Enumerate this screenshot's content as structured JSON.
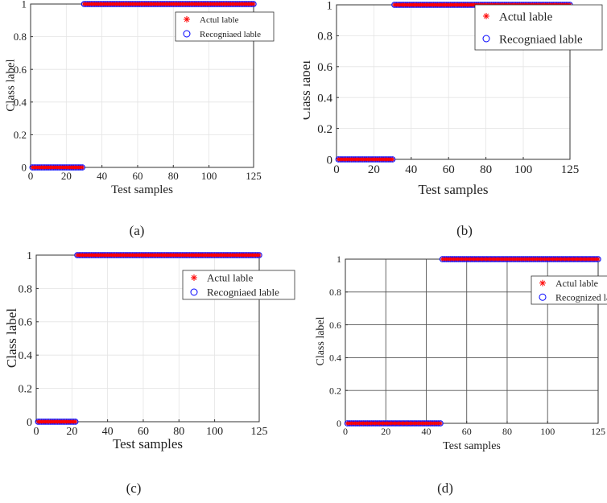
{
  "chart_data": [
    {
      "panel": "(a)",
      "type": "scatter",
      "xlabel": "Test samples",
      "ylabel": "Class label",
      "xlim": [
        0,
        125
      ],
      "ylim": [
        0,
        1
      ],
      "xticks": [
        0,
        20,
        40,
        60,
        80,
        100,
        125
      ],
      "yticks": [
        0,
        0.2,
        0.4,
        0.6,
        0.8,
        1
      ],
      "grid": "light",
      "legend": [
        "Actul lable",
        "Recogniaed lable"
      ],
      "legend_position": "top-right",
      "label_switch_sample": 30,
      "x_range": [
        1,
        125
      ],
      "series": [
        {
          "name": "Actul lable",
          "marker": "star",
          "color": "#ff0000",
          "value_before_switch": 0,
          "value_after_switch": 1
        },
        {
          "name": "Recogniaed lable",
          "marker": "circle",
          "color": "#0000ff",
          "value_before_switch": 0,
          "value_after_switch": 1
        }
      ]
    },
    {
      "panel": "(b)",
      "type": "scatter",
      "xlabel": "Test samples",
      "ylabel": "Class label",
      "xlim": [
        0,
        125
      ],
      "ylim": [
        0,
        1
      ],
      "xticks": [
        0,
        20,
        40,
        60,
        80,
        100,
        125
      ],
      "yticks": [
        0,
        0.2,
        0.4,
        0.6,
        0.8,
        1
      ],
      "grid": "light",
      "legend": [
        "Actul lable",
        "Recogniaed lable"
      ],
      "legend_position": "top-right",
      "label_switch_sample": 31,
      "x_range": [
        1,
        125
      ],
      "series": [
        {
          "name": "Actul lable",
          "marker": "star",
          "color": "#ff0000",
          "value_before_switch": 0,
          "value_after_switch": 1
        },
        {
          "name": "Recogniaed lable",
          "marker": "circle",
          "color": "#0000ff",
          "value_before_switch": 0,
          "value_after_switch": 1
        }
      ]
    },
    {
      "panel": "(c)",
      "type": "scatter",
      "xlabel": "Test samples",
      "ylabel": "Class label",
      "xlim": [
        0,
        125
      ],
      "ylim": [
        0,
        1
      ],
      "xticks": [
        0,
        20,
        40,
        60,
        80,
        100,
        125
      ],
      "yticks": [
        0,
        0.2,
        0.4,
        0.6,
        0.8,
        1
      ],
      "grid": "light",
      "legend": [
        "Actul lable",
        "Recogniaed lable"
      ],
      "legend_position": "top-right",
      "label_switch_sample": 23,
      "x_range": [
        1,
        125
      ],
      "series": [
        {
          "name": "Actul lable",
          "marker": "star",
          "color": "#ff0000",
          "value_before_switch": 0,
          "value_after_switch": 1
        },
        {
          "name": "Recogniaed lable",
          "marker": "circle",
          "color": "#0000ff",
          "value_before_switch": 0,
          "value_after_switch": 1
        }
      ]
    },
    {
      "panel": "(d)",
      "type": "scatter",
      "xlabel": "Test samples",
      "ylabel": "Class label",
      "xlim": [
        0,
        125
      ],
      "ylim": [
        0,
        1
      ],
      "xticks": [
        0,
        20,
        40,
        60,
        80,
        100,
        125
      ],
      "yticks": [
        0,
        0.2,
        0.4,
        0.6,
        0.8,
        1
      ],
      "grid": "dark",
      "legend": [
        "Actul lable",
        "Recognized lable"
      ],
      "legend_position": "top-right",
      "label_switch_sample": 48,
      "x_range": [
        1,
        125
      ],
      "series": [
        {
          "name": "Actul lable",
          "marker": "star",
          "color": "#ff0000",
          "value_before_switch": 0,
          "value_after_switch": 1
        },
        {
          "name": "Recognized lable",
          "marker": "circle",
          "color": "#0000ff",
          "value_before_switch": 0,
          "value_after_switch": 1
        }
      ]
    }
  ]
}
